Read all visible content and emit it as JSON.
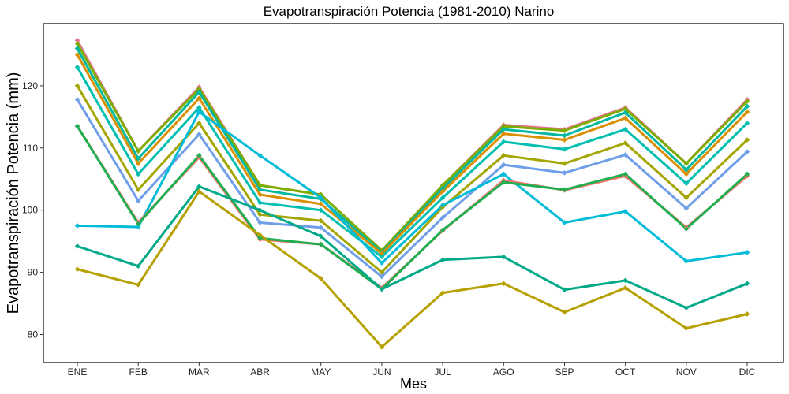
{
  "chart_data": {
    "type": "line",
    "title": "Evapotranspiración Potencia (1981-2010)  Narino",
    "xlabel": "Mes",
    "ylabel": "Evapotranspiración Potencia  (mm)",
    "categories": [
      "ENE",
      "FEB",
      "MAR",
      "ABR",
      "MAY",
      "JUN",
      "JUL",
      "AGO",
      "SEP",
      "OCT",
      "NOV",
      "DIC"
    ],
    "ylim": [
      75.5,
      130
    ],
    "yticks": [
      80,
      90,
      100,
      110,
      120
    ],
    "grid": false,
    "legend": "none",
    "series": [
      {
        "color": "#E5758F",
        "values": [
          127.3,
          109.5,
          119.8,
          104.0,
          102.5,
          93.5,
          104.0,
          113.7,
          113.0,
          116.5,
          107.5,
          117.8
        ]
      },
      {
        "color": "#7CAE00",
        "values": [
          126.8,
          109.5,
          119.5,
          104.0,
          102.5,
          93.5,
          104.0,
          113.5,
          112.8,
          116.3,
          107.5,
          117.5
        ]
      },
      {
        "color": "#00B8A0",
        "values": [
          126.0,
          108.3,
          119.0,
          103.3,
          101.8,
          93.2,
          103.5,
          113.0,
          112.0,
          115.7,
          106.5,
          116.7
        ]
      },
      {
        "color": "#D89000",
        "values": [
          125.0,
          107.5,
          118.0,
          102.5,
          101.0,
          93.0,
          103.0,
          112.3,
          111.3,
          114.8,
          105.8,
          115.8
        ]
      },
      {
        "color": "#00BFB0",
        "values": [
          123.0,
          105.8,
          116.5,
          101.2,
          100.0,
          92.5,
          102.0,
          111.0,
          109.8,
          113.0,
          104.3,
          114.0
        ]
      },
      {
        "color": "#A3A500",
        "values": [
          120.0,
          103.3,
          114.0,
          99.3,
          98.3,
          90.0,
          100.5,
          108.8,
          107.5,
          110.8,
          102.0,
          111.3
        ]
      },
      {
        "color": "#6F9FE8",
        "values": [
          117.8,
          101.5,
          112.2,
          98.0,
          97.2,
          89.3,
          98.8,
          107.3,
          106.0,
          108.9,
          100.3,
          109.4
        ]
      },
      {
        "color": "#00BCD8",
        "values": [
          97.5,
          97.3,
          115.8,
          108.8,
          102.0,
          91.5,
          100.8,
          105.8,
          98.0,
          99.8,
          91.8,
          93.2
        ]
      },
      {
        "color": "#F8766D",
        "values": [
          113.5,
          98.0,
          108.5,
          95.3,
          94.5,
          87.5,
          96.7,
          104.8,
          103.2,
          105.5,
          97.2,
          105.5
        ]
      },
      {
        "color": "#1FAF50",
        "values": [
          113.5,
          97.8,
          108.8,
          95.5,
          94.5,
          87.3,
          96.8,
          104.5,
          103.3,
          105.8,
          97.0,
          105.8
        ]
      },
      {
        "color": "#00A987",
        "values": [
          94.2,
          91.0,
          103.8,
          100.0,
          95.8,
          87.3,
          92.0,
          92.5,
          87.2,
          88.7,
          84.3,
          88.2
        ]
      },
      {
        "color": "#B5A000",
        "values": [
          90.5,
          88.0,
          103.0,
          96.0,
          89.0,
          78.0,
          86.7,
          88.2,
          83.6,
          87.5,
          81.0,
          83.3
        ]
      }
    ]
  }
}
